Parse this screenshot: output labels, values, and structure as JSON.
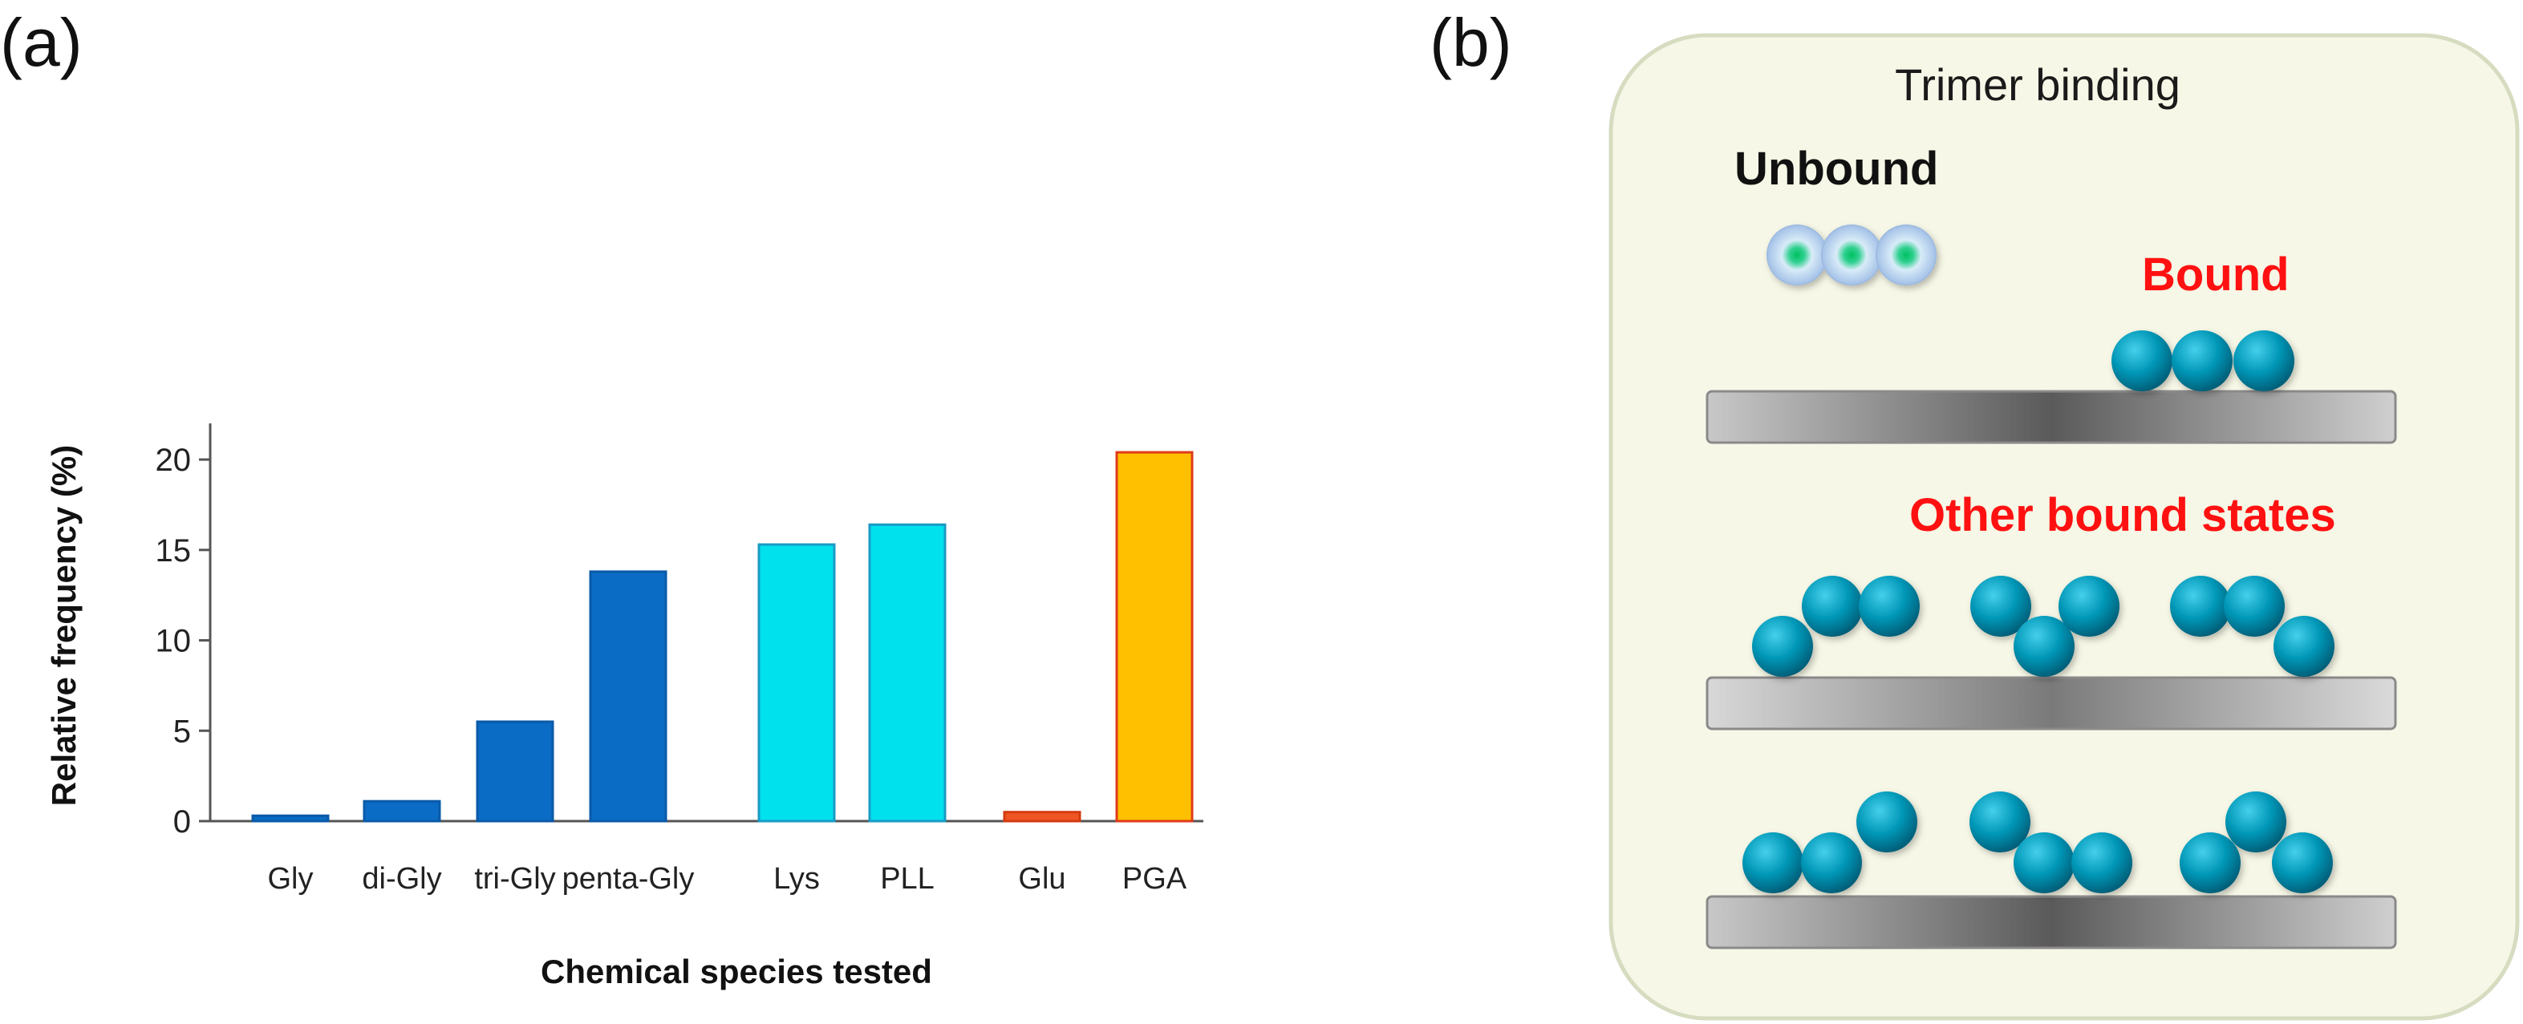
{
  "panels": {
    "a": "(a)",
    "b": "(b)"
  },
  "chart_data": {
    "type": "bar",
    "categories": [
      "Gly",
      "di-Gly",
      "tri-Gly",
      "penta-Gly",
      "Lys",
      "PLL",
      "Glu",
      "PGA"
    ],
    "values": [
      0.3,
      1.1,
      5.5,
      13.8,
      15.3,
      16.4,
      0.5,
      20.4
    ],
    "colors": [
      "#0a6cc4",
      "#0a6cc4",
      "#0a6cc4",
      "#0a6cc4",
      "#00e1ee",
      "#00e1ee",
      "#ee5522",
      "#ffc000"
    ],
    "strokes": [
      "#0a5aa8",
      "#0a5aa8",
      "#0a5aa8",
      "#0a5aa8",
      "#1a9ac4",
      "#1a9ac4",
      "#d43a10",
      "#e03a1a"
    ],
    "xlabel": "Chemical species tested",
    "ylabel": "Relative frequency (%)",
    "ylim": [
      0,
      22
    ],
    "yticks": [
      0,
      5,
      10,
      15,
      20
    ],
    "grid": false
  },
  "diagram": {
    "title": "Trimer binding",
    "unbound_label": "Unbound",
    "bound_label": "Bound",
    "other_label": "Other bound states",
    "bound_color": "#ff1111",
    "unbound_color": "#111111",
    "panel_fill": "#f6f7e6",
    "bead_color": "#0096b6"
  }
}
